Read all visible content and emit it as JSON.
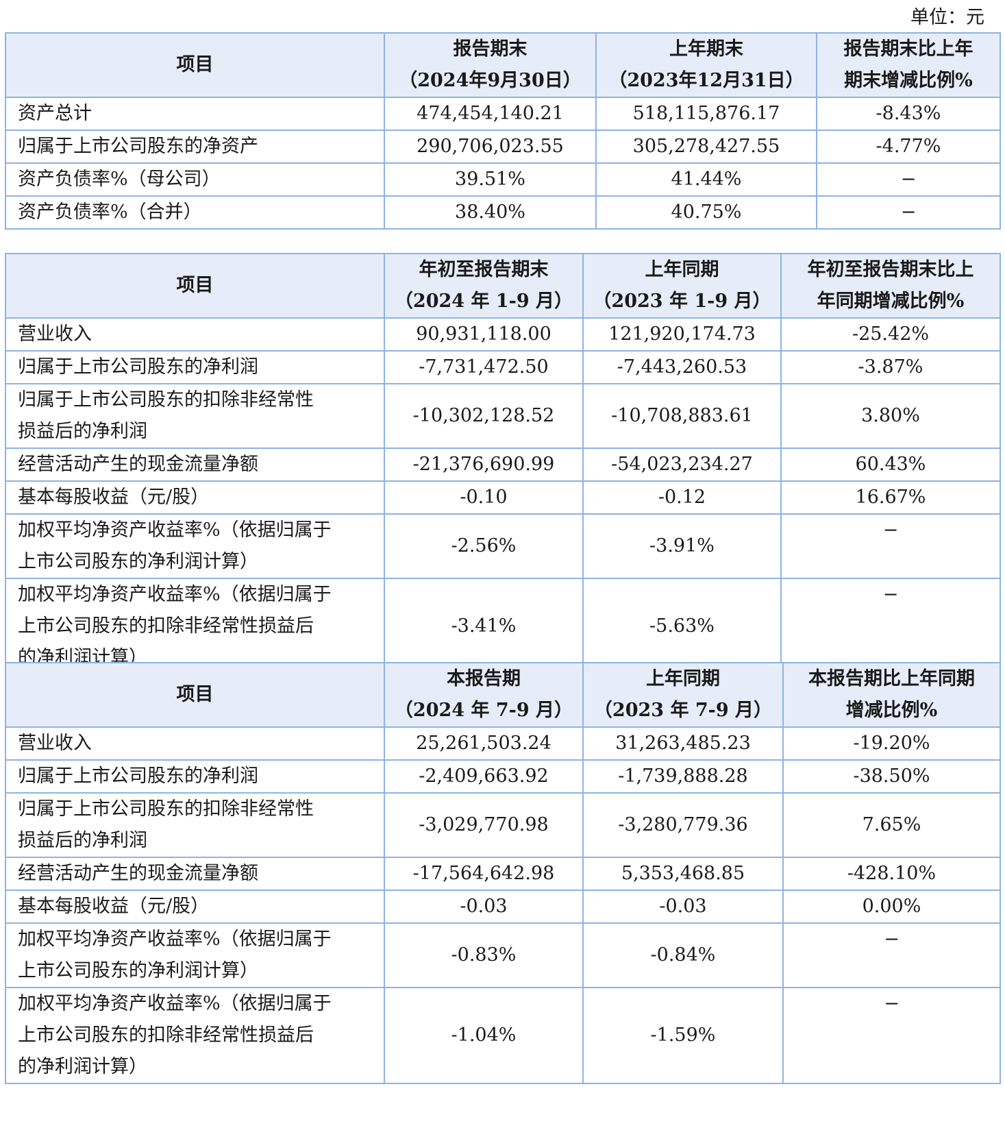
{
  "unit": "单位：元",
  "table1": {
    "headers": [
      {
        "line1": "项目"
      },
      {
        "line1": "报告期末",
        "line2": "（2024年9月30日）"
      },
      {
        "line1": "上年期末",
        "line2": "（2023年12月31日）"
      },
      {
        "line1": "报告期末比上年",
        "line2": "期末增减比例%"
      }
    ],
    "rows": [
      {
        "item": "资产总计",
        "v1": "474,454,140.21",
        "v2": "518,115,876.17",
        "v3": "-8.43%"
      },
      {
        "item": "归属于上市公司股东的净资产",
        "v1": "290,706,023.55",
        "v2": "305,278,427.55",
        "v3": "-4.77%"
      },
      {
        "item": "资产负债率%（母公司）",
        "v1": "39.51%",
        "v2": "41.44%",
        "v3": "−"
      },
      {
        "item": "资产负债率%（合并）",
        "v1": "38.40%",
        "v2": "40.75%",
        "v3": "−"
      }
    ]
  },
  "table2": {
    "headers": [
      {
        "line1": "项目"
      },
      {
        "line1": "年初至报告期末",
        "line2": "（2024 年 1-9 月）"
      },
      {
        "line1": "上年同期",
        "line2": "（2023 年 1-9 月）"
      },
      {
        "line1": "年初至报告期末比上",
        "line2": "年同期增减比例%"
      }
    ],
    "rows": [
      {
        "item_lines": [
          "营业收入"
        ],
        "v1": "90,931,118.00",
        "v2": "121,920,174.73",
        "v3": "-25.42%"
      },
      {
        "item_lines": [
          "归属于上市公司股东的净利润"
        ],
        "v1": "-7,731,472.50",
        "v2": "-7,443,260.53",
        "v3": "-3.87%"
      },
      {
        "item_lines": [
          "归属于上市公司股东的扣除非经常性",
          "损益后的净利润"
        ],
        "v1": "-10,302,128.52",
        "v2": "-10,708,883.61",
        "v3": "3.80%"
      },
      {
        "item_lines": [
          "经营活动产生的现金流量净额"
        ],
        "v1": "-21,376,690.99",
        "v2": "-54,023,234.27",
        "v3": "60.43%"
      },
      {
        "item_lines": [
          "基本每股收益（元/股）"
        ],
        "v1": "-0.10",
        "v2": "-0.12",
        "v3": "16.67%"
      },
      {
        "item_lines": [
          "加权平均净资产收益率%（依据归属于",
          "上市公司股东的净利润计算）"
        ],
        "v1": "-2.56%",
        "v2": "-3.91%",
        "v3": "−"
      },
      {
        "item_lines": [
          "加权平均净资产收益率%（依据归属于",
          "上市公司股东的扣除非经常性损益后",
          "的净利润计算）"
        ],
        "v1": "-3.41%",
        "v2": "-5.63%",
        "v3": "−"
      }
    ]
  },
  "table3": {
    "headers": [
      {
        "line1": "项目"
      },
      {
        "line1": "本报告期",
        "line2": "（2024 年 7-9 月）"
      },
      {
        "line1": "上年同期",
        "line2": "（2023 年 7-9 月）"
      },
      {
        "line1": "本报告期比上年同期",
        "line2": "增减比例%"
      }
    ],
    "rows": [
      {
        "item_lines": [
          "营业收入"
        ],
        "v1": "25,261,503.24",
        "v2": "31,263,485.23",
        "v3": "-19.20%"
      },
      {
        "item_lines": [
          "归属于上市公司股东的净利润"
        ],
        "v1": "-2,409,663.92",
        "v2": "-1,739,888.28",
        "v3": "-38.50%"
      },
      {
        "item_lines": [
          "归属于上市公司股东的扣除非经常性",
          "损益后的净利润"
        ],
        "v1": "-3,029,770.98",
        "v2": "-3,280,779.36",
        "v3": "7.65%"
      },
      {
        "item_lines": [
          "经营活动产生的现金流量净额"
        ],
        "v1": "-17,564,642.98",
        "v2": "5,353,468.85",
        "v3": "-428.10%"
      },
      {
        "item_lines": [
          "基本每股收益（元/股）"
        ],
        "v1": "-0.03",
        "v2": "-0.03",
        "v3": "0.00%"
      },
      {
        "item_lines": [
          "加权平均净资产收益率%（依据归属于",
          "上市公司股东的净利润计算）"
        ],
        "v1": "-0.83%",
        "v2": "-0.84%",
        "v3": "−"
      },
      {
        "item_lines": [
          "加权平均净资产收益率%（依据归属于",
          "上市公司股东的扣除非经常性损益后",
          "的净利润计算）"
        ],
        "v1": "-1.04%",
        "v2": "-1.59%",
        "v3": "−"
      }
    ]
  }
}
